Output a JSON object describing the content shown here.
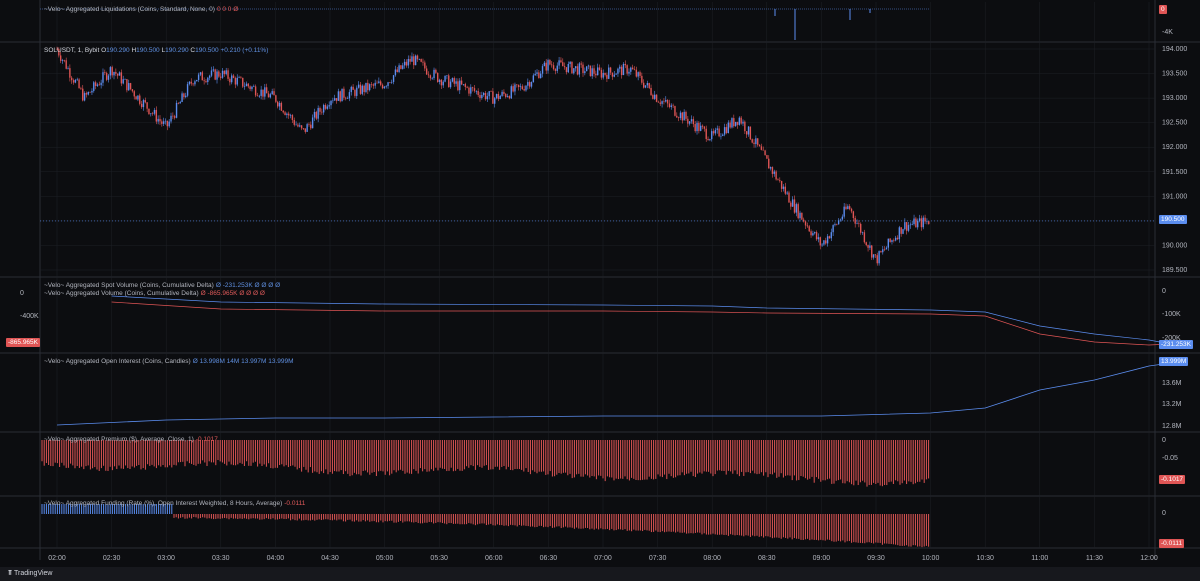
{
  "symbol_header": {
    "symbol": "SOLUSDT, 1, Bybit",
    "o_label": "O",
    "o": "190.290",
    "h_label": "H",
    "h": "190.500",
    "l_label": "L",
    "l": "190.290",
    "c_label": "C",
    "c": "190.500",
    "chg": "+0.210 (+0.11%)"
  },
  "panes": {
    "liquidations": {
      "label": "~Velo~ Aggregated Liquidations (Coins, Standard, None, 0)",
      "values": "0  0  0  Ø"
    },
    "spot_volume": {
      "label": "~Velo~ Aggregated Spot Volume (Coins, Cumulative Delta)",
      "values": "Ø  -231.253K  Ø  Ø  Ø  Ø"
    },
    "volume": {
      "label": "~Velo~ Aggregated Volume (Coins, Cumulative Delta)",
      "values": "Ø  -865.965K  Ø  Ø  Ø  Ø"
    },
    "open_interest": {
      "label": "~Velo~ Aggregated Open Interest (Coins, Candles)",
      "values": "Ø  13.998M  14M  13.997M  13.999M"
    },
    "premium": {
      "label": "~Velo~ Aggregated Premium ($), Average, Close, 1)",
      "values": "-0.1017"
    },
    "funding": {
      "label": "~Velo~ Aggregated Funding (Rate (%), Open Interest Weighted, 8 Hours, Average)",
      "values": "-0.0111"
    }
  },
  "price_axis": [
    "194.000",
    "193.500",
    "193.000",
    "192.500",
    "192.000",
    "191.500",
    "191.000",
    "190.500",
    "190.000",
    "189.500"
  ],
  "price_tag": "190.500",
  "liq_axis": {
    "zero_tag": "0",
    "minus4k": "-4K"
  },
  "volume_axis": {
    "right": [
      "0",
      "-100K",
      "-200K"
    ],
    "left": [
      "0",
      "-400K",
      "-800K"
    ],
    "left_tag": "-865.965K",
    "right_tag": "-231.253K"
  },
  "oi_axis": {
    "ticks": [
      "13.6M",
      "13.2M",
      "12.8M"
    ],
    "tag": "13.999M"
  },
  "premium_axis": {
    "ticks": [
      "0",
      "-0.05"
    ],
    "tag": "-0.1017"
  },
  "funding_axis": {
    "ticks": [
      "0"
    ],
    "tag": "-0.0111"
  },
  "time_axis": [
    "02:00",
    "02:30",
    "03:00",
    "03:30",
    "04:00",
    "04:30",
    "05:00",
    "05:30",
    "06:00",
    "06:30",
    "07:00",
    "07:30",
    "08:00",
    "08:30",
    "09:00",
    "09:30",
    "10:00",
    "10:30",
    "11:00",
    "11:30",
    "12:00"
  ],
  "footer": {
    "brand": "TradingView"
  },
  "colors": {
    "up": "#5b8def",
    "down": "#e05555",
    "bg": "#0c0d10",
    "grid": "#1e2026"
  },
  "chart_data": {
    "type": "line",
    "title": "",
    "series": [
      {
        "name": "SOLUSDT, 1, Bybit",
        "x": [
          "02:00",
          "02:15",
          "02:30",
          "03:00",
          "03:15",
          "03:30",
          "04:00",
          "04:15",
          "04:30",
          "05:00",
          "05:15",
          "05:30",
          "06:00",
          "06:15",
          "06:30",
          "07:00",
          "07:15",
          "07:30",
          "08:00",
          "08:15",
          "08:30",
          "08:45",
          "09:00",
          "09:15",
          "09:30",
          "09:45",
          "10:00"
        ],
        "values": [
          194.0,
          193.0,
          193.6,
          192.4,
          193.4,
          193.5,
          193.0,
          192.3,
          193.0,
          193.3,
          193.8,
          193.4,
          193.0,
          193.2,
          193.7,
          193.5,
          193.6,
          193.0,
          192.2,
          192.6,
          191.7,
          190.8,
          190.0,
          190.8,
          189.7,
          190.4,
          190.5
        ]
      }
    ],
    "ylim": [
      189.3,
      194.1
    ]
  }
}
